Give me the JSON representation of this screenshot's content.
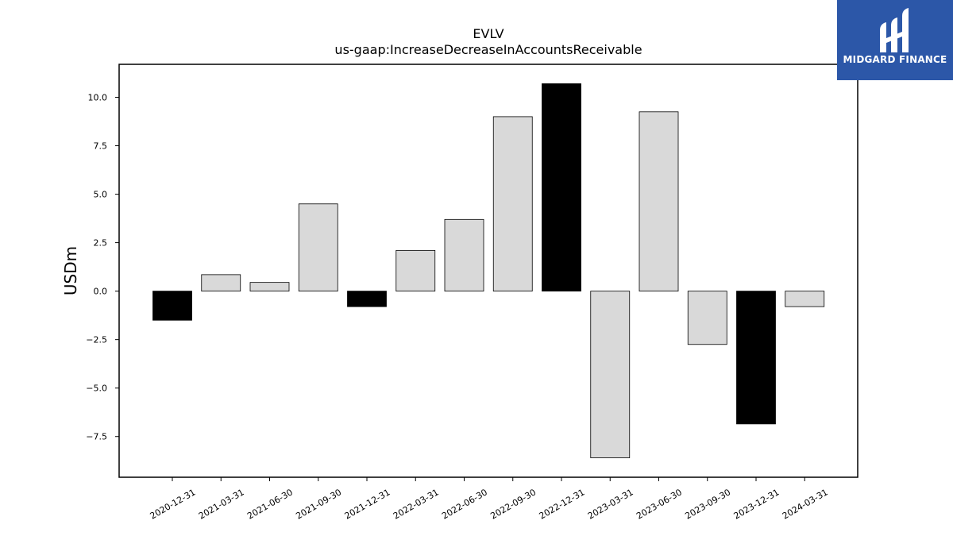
{
  "brand": {
    "name": "MIDGARD FINANCE",
    "bg_color": "#2c57a8"
  },
  "chart_data": {
    "type": "bar",
    "title": "EVLV",
    "subtitle": "us-gaap:IncreaseDecreaseInAccountsReceivable",
    "xlabel": "",
    "ylabel": "USDm",
    "ylim": [
      -9.6,
      11.7
    ],
    "yticks": [
      -7.5,
      -5.0,
      -2.5,
      0.0,
      2.5,
      5.0,
      7.5,
      10.0
    ],
    "ytick_labels": [
      "−7.5",
      "−5.0",
      "−2.5",
      "0.0",
      "2.5",
      "5.0",
      "7.5",
      "10.0"
    ],
    "grid": false,
    "categories": [
      "2020-12-31",
      "2021-03-31",
      "2021-06-30",
      "2021-09-30",
      "2021-12-31",
      "2022-03-31",
      "2022-06-30",
      "2022-09-30",
      "2022-12-31",
      "2023-03-31",
      "2023-06-30",
      "2023-09-30",
      "2023-12-31",
      "2024-03-31"
    ],
    "values": [
      -1.5,
      0.85,
      0.45,
      4.5,
      -0.8,
      2.1,
      3.7,
      9.0,
      10.7,
      -8.6,
      9.25,
      -2.75,
      -6.85,
      -0.8
    ],
    "bar_colors": [
      "#000000",
      "#d9d9d9",
      "#d9d9d9",
      "#d9d9d9",
      "#000000",
      "#d9d9d9",
      "#d9d9d9",
      "#d9d9d9",
      "#000000",
      "#d9d9d9",
      "#d9d9d9",
      "#d9d9d9",
      "#000000",
      "#d9d9d9"
    ]
  }
}
